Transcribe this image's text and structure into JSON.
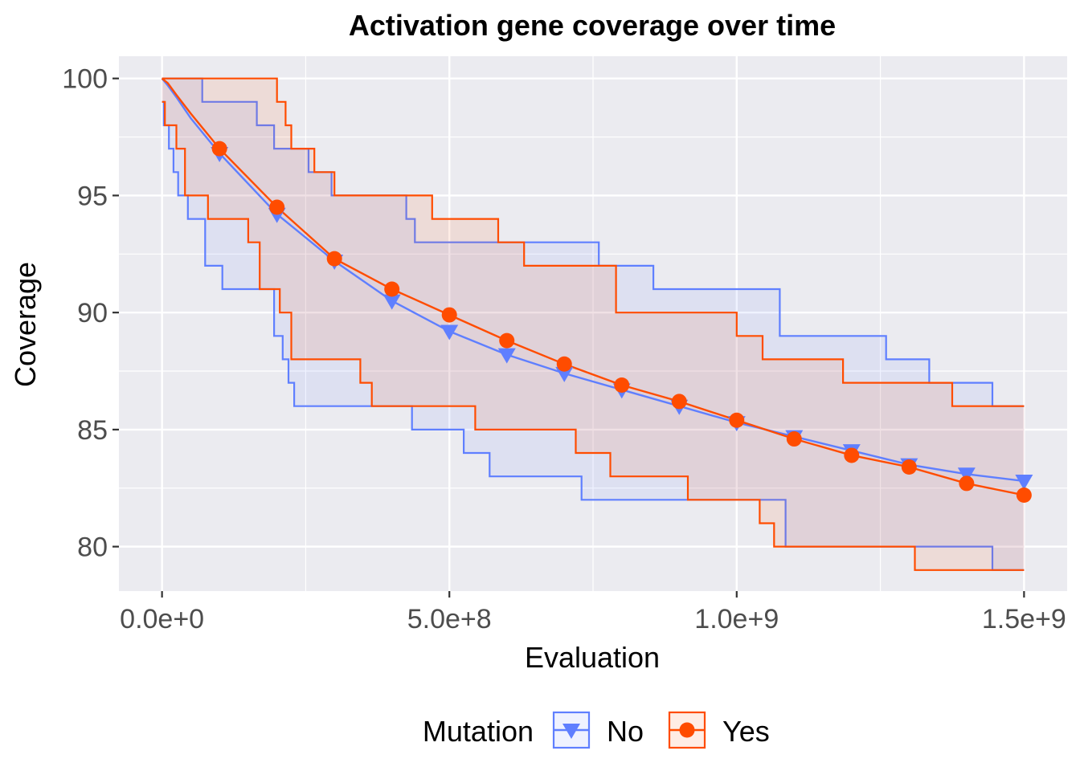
{
  "chart_data": {
    "type": "line",
    "title": "Activation gene coverage over time",
    "xlabel": "Evaluation",
    "ylabel": "Coverage",
    "xlim": [
      -75000000,
      1575000000
    ],
    "ylim": [
      78.1,
      100.95
    ],
    "x_ticks": [
      {
        "value": 0,
        "label": "0.0e+0"
      },
      {
        "value": 500000000,
        "label": "5.0e+8"
      },
      {
        "value": 1000000000,
        "label": "1.0e+9"
      },
      {
        "value": 1500000000,
        "label": "1.5e+9"
      }
    ],
    "y_ticks": [
      {
        "value": 100,
        "label": "100"
      },
      {
        "value": 95,
        "label": "95"
      },
      {
        "value": 90,
        "label": "90"
      },
      {
        "value": 85,
        "label": "85"
      },
      {
        "value": 80,
        "label": "80"
      }
    ],
    "grid": true,
    "legend": {
      "title": "Mutation",
      "position": "bottom"
    },
    "series": [
      {
        "name": "No",
        "color": "#5f7fff",
        "marker": "triangle-down",
        "mean": {
          "x": [
            0,
            10000000,
            25000000,
            50000000,
            100000000,
            200000000,
            300000000,
            400000000,
            500000000,
            600000000,
            700000000,
            800000000,
            900000000,
            1000000000,
            1100000000,
            1200000000,
            1300000000,
            1400000000,
            1500000000
          ],
          "y": [
            100,
            99.7,
            99.2,
            98.3,
            96.8,
            94.2,
            92.2,
            90.5,
            89.2,
            88.2,
            87.4,
            86.7,
            86.0,
            85.3,
            84.7,
            84.1,
            83.5,
            83.1,
            82.8
          ]
        },
        "markers": {
          "x": [
            100000000,
            200000000,
            300000000,
            400000000,
            500000000,
            600000000,
            700000000,
            800000000,
            900000000,
            1000000000,
            1100000000,
            1200000000,
            1300000000,
            1400000000,
            1500000000
          ],
          "y": [
            96.8,
            94.2,
            92.2,
            90.5,
            89.2,
            88.2,
            87.4,
            86.7,
            86.0,
            85.3,
            84.7,
            84.1,
            83.5,
            83.1,
            82.8
          ]
        },
        "upper": {
          "x": [
            0,
            70000000,
            165000000,
            195000000,
            255000000,
            295000000,
            425000000,
            440000000,
            760000000,
            855000000,
            1075000000,
            1260000000,
            1335000000,
            1445000000,
            1500000000
          ],
          "y": [
            100,
            99,
            98,
            97,
            96,
            95,
            94,
            93,
            92,
            91,
            89,
            88,
            87,
            86,
            86
          ]
        },
        "lower": {
          "x": [
            0,
            3000000,
            12000000,
            20000000,
            28000000,
            45000000,
            75000000,
            105000000,
            195000000,
            210000000,
            220000000,
            230000000,
            435000000,
            525000000,
            570000000,
            730000000,
            1085000000,
            1445000000,
            1500000000
          ],
          "y": [
            99,
            98,
            97,
            96,
            95,
            94,
            92,
            91,
            89,
            88,
            87,
            86,
            85,
            84,
            83,
            82,
            80,
            79,
            79
          ]
        }
      },
      {
        "name": "Yes",
        "color": "#ff4c00",
        "marker": "circle",
        "mean": {
          "x": [
            0,
            10000000,
            25000000,
            50000000,
            100000000,
            200000000,
            300000000,
            400000000,
            500000000,
            600000000,
            700000000,
            800000000,
            900000000,
            1000000000,
            1100000000,
            1200000000,
            1300000000,
            1400000000,
            1500000000
          ],
          "y": [
            100,
            99.8,
            99.3,
            98.5,
            97.0,
            94.5,
            92.3,
            91.0,
            89.9,
            88.8,
            87.8,
            86.9,
            86.2,
            85.4,
            84.6,
            83.9,
            83.4,
            82.7,
            82.2
          ]
        },
        "markers": {
          "x": [
            100000000,
            200000000,
            300000000,
            400000000,
            500000000,
            600000000,
            700000000,
            800000000,
            900000000,
            1000000000,
            1100000000,
            1200000000,
            1300000000,
            1400000000,
            1500000000
          ],
          "y": [
            97.0,
            94.5,
            92.3,
            91.0,
            89.9,
            88.8,
            87.8,
            86.9,
            86.2,
            85.4,
            84.6,
            83.9,
            83.4,
            82.7,
            82.2
          ]
        },
        "upper": {
          "x": [
            0,
            200000000,
            215000000,
            225000000,
            265000000,
            300000000,
            430000000,
            470000000,
            585000000,
            630000000,
            790000000,
            1000000000,
            1045000000,
            1185000000,
            1375000000,
            1500000000
          ],
          "y": [
            100,
            99,
            98,
            97,
            96,
            95,
            95,
            94,
            93,
            92,
            90,
            89,
            88,
            87,
            86,
            86
          ]
        },
        "lower": {
          "x": [
            0,
            5000000,
            25000000,
            40000000,
            80000000,
            150000000,
            170000000,
            205000000,
            225000000,
            345000000,
            365000000,
            545000000,
            720000000,
            780000000,
            915000000,
            1040000000,
            1065000000,
            1310000000,
            1500000000
          ],
          "y": [
            99,
            98,
            97,
            95,
            94,
            93,
            91,
            90,
            88,
            87,
            86,
            85,
            84,
            83,
            82,
            81,
            80,
            79,
            79
          ]
        }
      }
    ]
  }
}
